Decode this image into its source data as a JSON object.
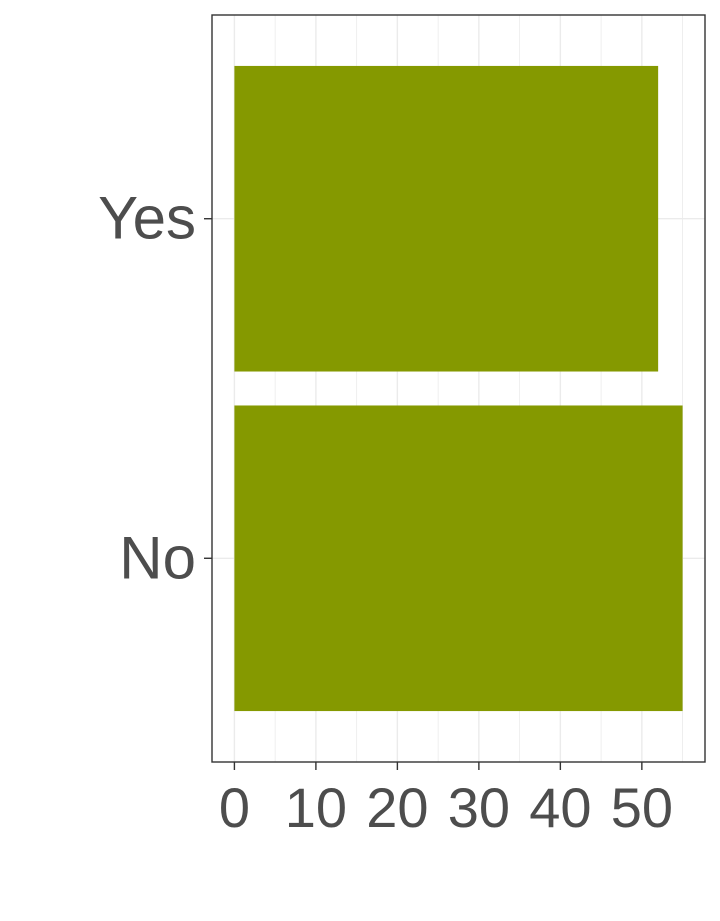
{
  "chart_data": {
    "type": "bar",
    "orientation": "horizontal",
    "categories": [
      "No",
      "Yes"
    ],
    "values": [
      55,
      52
    ],
    "xlim": [
      -2.75,
      57.75
    ],
    "xticks": [
      0,
      10,
      20,
      30,
      40,
      50
    ],
    "xtick_labels": [
      "0",
      "10",
      "20",
      "30",
      "40",
      "50"
    ],
    "title": "",
    "xlabel": "",
    "ylabel": "",
    "grid": true,
    "legend": "none",
    "bar_color": "#859900",
    "text_color": "#4d4d4d",
    "grid_color": "#ebebeb",
    "border_color": "#333333"
  }
}
